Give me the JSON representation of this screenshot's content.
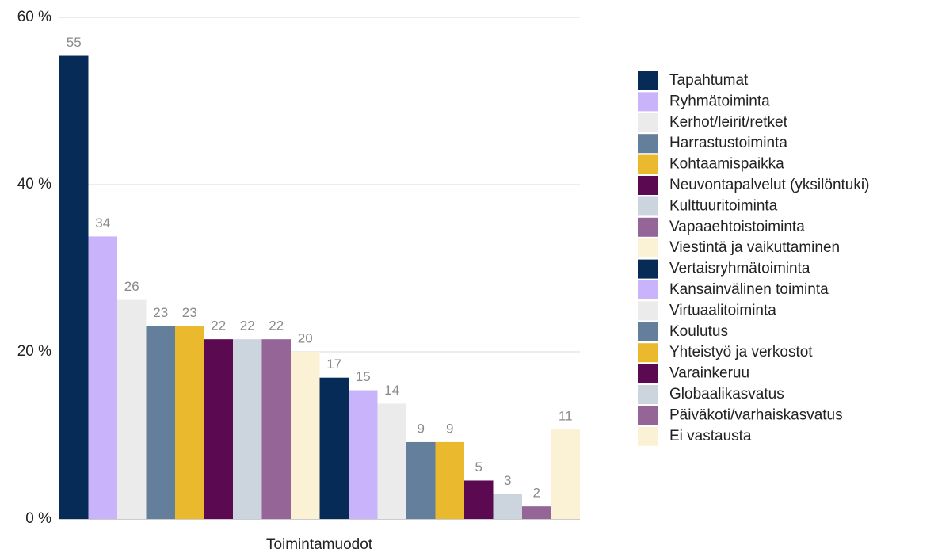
{
  "chart_data": {
    "type": "bar",
    "x_label": "Toimintamuodot",
    "categories": [
      null
    ],
    "ylim": [
      0,
      60
    ],
    "yticks": [
      {
        "value": 0,
        "label": "0 %"
      },
      {
        "value": 20,
        "label": "20 %"
      },
      {
        "value": 40,
        "label": "40 %"
      },
      {
        "value": 60,
        "label": "60 %"
      }
    ],
    "grid": true,
    "legend": "right",
    "series": [
      {
        "name": "Tapahtumat",
        "color": "#062b56",
        "values": [
          55.4
        ],
        "value_labels": [
          "55"
        ]
      },
      {
        "name": "Ryhmätoiminta",
        "color": "#c9b4fb",
        "values": [
          33.8
        ],
        "value_labels": [
          "34"
        ]
      },
      {
        "name": "Kerhot/leirit/retket",
        "color": "#ebebeb",
        "values": [
          26.2
        ],
        "value_labels": [
          "26"
        ]
      },
      {
        "name": "Harrastustoiminta",
        "color": "#647f9b",
        "values": [
          23.1
        ],
        "value_labels": [
          "23"
        ]
      },
      {
        "name": "Kohtaamispaikka",
        "color": "#ebb92e",
        "values": [
          23.1
        ],
        "value_labels": [
          "23"
        ]
      },
      {
        "name": "Neuvontapalvelut (yksilöntuki)",
        "color": "#5b0a52",
        "values": [
          21.5
        ],
        "value_labels": [
          "22"
        ]
      },
      {
        "name": "Kulttuuritoiminta",
        "color": "#ccd4de",
        "values": [
          21.5
        ],
        "value_labels": [
          "22"
        ]
      },
      {
        "name": "Vapaaehtoistoiminta",
        "color": "#956597",
        "values": [
          21.5
        ],
        "value_labels": [
          "22"
        ]
      },
      {
        "name": "Viestintä ja vaikuttaminen",
        "color": "#fbf1d4",
        "values": [
          20.0
        ],
        "value_labels": [
          "20"
        ]
      },
      {
        "name": "Vertaisryhmätoiminta",
        "color": "#062b56",
        "values": [
          16.9
        ],
        "value_labels": [
          "17"
        ]
      },
      {
        "name": "Kansainvälinen toiminta",
        "color": "#c9b4fb",
        "values": [
          15.4
        ],
        "value_labels": [
          "15"
        ]
      },
      {
        "name": "Virtuaalitoiminta",
        "color": "#ebebeb",
        "values": [
          13.8
        ],
        "value_labels": [
          "14"
        ]
      },
      {
        "name": "Koulutus",
        "color": "#647f9b",
        "values": [
          9.2
        ],
        "value_labels": [
          "9"
        ]
      },
      {
        "name": "Yhteistyö ja verkostot",
        "color": "#ebb92e",
        "values": [
          9.2
        ],
        "value_labels": [
          "9"
        ]
      },
      {
        "name": "Varainkeruu",
        "color": "#5b0a52",
        "values": [
          4.6
        ],
        "value_labels": [
          "5"
        ]
      },
      {
        "name": "Globaalikasvatus",
        "color": "#ccd4de",
        "values": [
          3.0
        ],
        "value_labels": [
          "3"
        ]
      },
      {
        "name": "Päiväkoti/varhaiskasvatus",
        "color": "#956597",
        "values": [
          1.5
        ],
        "value_labels": [
          "2"
        ]
      },
      {
        "name": "Ei vastausta",
        "color": "#fbf1d4",
        "values": [
          10.7
        ],
        "value_labels": [
          "11"
        ]
      }
    ]
  }
}
